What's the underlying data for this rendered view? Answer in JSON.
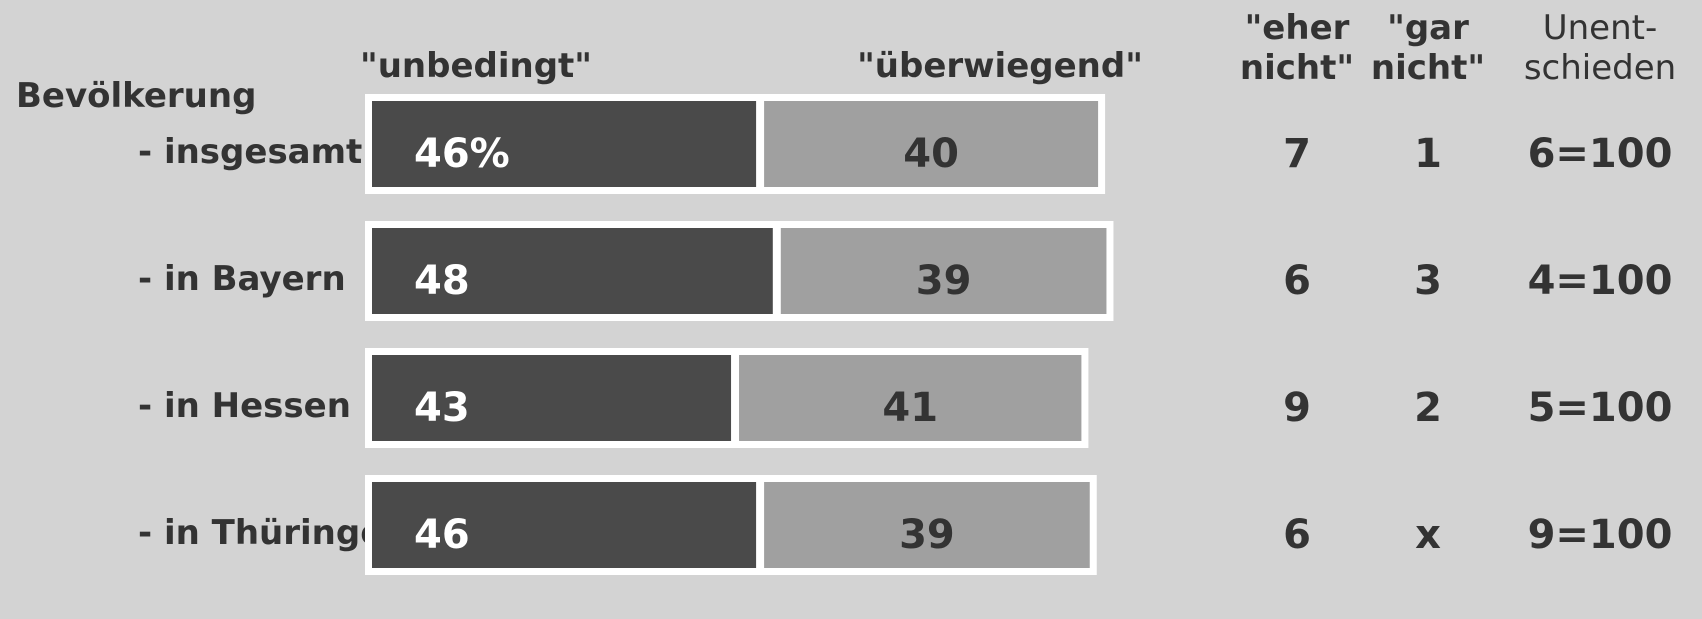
{
  "chart_data": {
    "type": "stacked-bar-horizontal",
    "group_label": "Bevölkerung",
    "categories": [
      "- insgesamt",
      "- in Bayern",
      "- in Hessen",
      "- in Thüringen"
    ],
    "series": [
      {
        "name": "\"unbedingt\"",
        "color": "#4a4a4a",
        "label_color": "#ffffff",
        "values": [
          46,
          48,
          43,
          46
        ],
        "value_labels": [
          "46%",
          "48",
          "43",
          "46"
        ]
      },
      {
        "name": "\"überwiegend\"",
        "color": "#a0a0a0",
        "label_color": "#333333",
        "values": [
          40,
          39,
          41,
          39
        ]
      }
    ],
    "columns": [
      {
        "name": [
          "\"eher",
          "nicht\""
        ],
        "bold": true,
        "values": [
          7,
          6,
          9,
          6
        ]
      },
      {
        "name": [
          "\"gar",
          "nicht\""
        ],
        "bold": true,
        "values": [
          1,
          3,
          2,
          null
        ],
        "value_labels": [
          "1",
          "3",
          "2",
          "x"
        ]
      },
      {
        "name": [
          "Unent-",
          "schieden"
        ],
        "bold": false,
        "values": [
          6,
          4,
          5,
          9
        ],
        "value_labels": [
          "6=100",
          "4=100",
          "5=100",
          "9=100"
        ]
      }
    ]
  }
}
